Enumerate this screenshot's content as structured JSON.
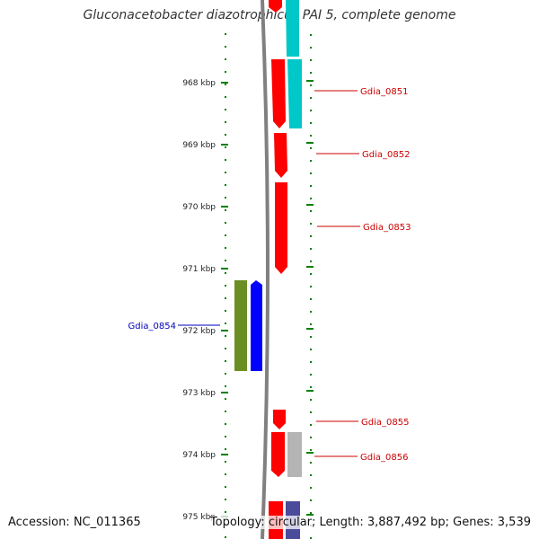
{
  "title": "Gluconacetobacter diazotrophicus PAI 5, complete genome",
  "accession": "Accession: NC_011365",
  "topology": "Topology: circular; Length: 3,887,492 bp; Genes: 3,539",
  "kbp_labels": [
    "968 kbp",
    "969 kbp",
    "970 kbp",
    "971 kbp",
    "972 kbp",
    "973 kbp",
    "974 kbp",
    "975 kbp"
  ],
  "gene_labels": [
    {
      "name": "Gdia_0851",
      "side": "right",
      "color": "#cc0000"
    },
    {
      "name": "Gdia_0852",
      "side": "right",
      "color": "#cc0000"
    },
    {
      "name": "Gdia_0853",
      "side": "right",
      "color": "#cc0000"
    },
    {
      "name": "Gdia_0854",
      "side": "left",
      "color": "#0000bb"
    },
    {
      "name": "Gdia_0855",
      "side": "right",
      "color": "#cc0000"
    },
    {
      "name": "Gdia_0856",
      "side": "right",
      "color": "#cc0000"
    }
  ],
  "colors": {
    "cds_forward": "#ff0000",
    "cds_blue": "#0000ff",
    "cds_olive": "#6b8e23",
    "cds_cyan": "#00c8c8",
    "cds_grey": "#b4b4b4",
    "cds_purple": "#4b4b9b",
    "backbone": "#808080",
    "ticks": "#008000"
  }
}
